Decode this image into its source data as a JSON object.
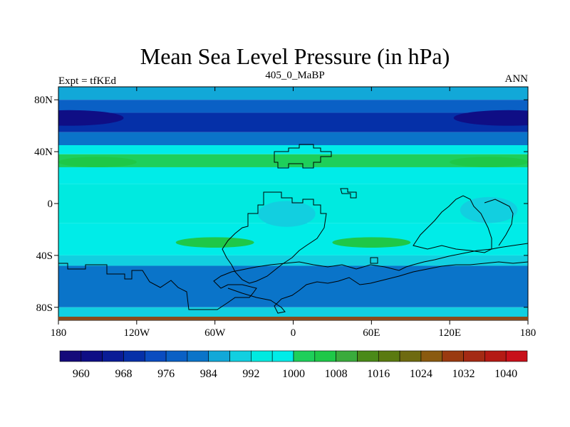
{
  "chart_data": {
    "type": "heatmap",
    "title": "Mean Sea Level Pressure (in hPa)",
    "left_string": "Expt = tfKEd",
    "center_string": "405_0_MaBP",
    "right_string": "ANN",
    "xlim": [
      -180,
      180
    ],
    "ylim": [
      -90,
      90
    ],
    "x_ticks": [
      -180,
      -120,
      -60,
      0,
      60,
      120,
      180
    ],
    "x_tick_labels": [
      "180",
      "120W",
      "60W",
      "0",
      "60E",
      "120E",
      "180"
    ],
    "y_ticks": [
      -80,
      -40,
      0,
      40,
      80
    ],
    "y_tick_labels": [
      "80S",
      "40S",
      "0",
      "40N",
      "80N"
    ],
    "colorbar": {
      "levels": [
        956,
        960,
        964,
        968,
        972,
        976,
        980,
        984,
        988,
        992,
        996,
        1000,
        1004,
        1008,
        1012,
        1016,
        1020,
        1024,
        1028,
        1032,
        1036,
        1040,
        1044
      ],
      "label_values": [
        "960",
        "968",
        "976",
        "984",
        "992",
        "1000",
        "1008",
        "1016",
        "1024",
        "1032",
        "1040"
      ],
      "colors": [
        "#150a7a",
        "#0f0e85",
        "#0a1c96",
        "#0530a8",
        "#0a4cc0",
        "#0a60c5",
        "#0a74c9",
        "#12a8d8",
        "#12cfe0",
        "#00eae0",
        "#00ece8",
        "#1ecf5a",
        "#1ec848",
        "#3aab3c",
        "#4a8a18",
        "#5a7a10",
        "#6e6a10",
        "#8a5a10",
        "#9a3a10",
        "#a42a14",
        "#b41a14",
        "#c8101a"
      ]
    },
    "latitude_bands": [
      {
        "lat_range": [
          80,
          90
        ],
        "value_hPa": 986
      },
      {
        "lat_range": [
          70,
          80
        ],
        "value_hPa": 978
      },
      {
        "lat_range": [
          55,
          70
        ],
        "value_hPa": 970
      },
      {
        "lat_range": [
          45,
          55
        ],
        "value_hPa": 980
      },
      {
        "lat_range": [
          38,
          45
        ],
        "value_hPa": 998
      },
      {
        "lat_range": [
          28,
          38
        ],
        "value_hPa": 1002
      },
      {
        "lat_range": [
          15,
          28
        ],
        "value_hPa": 998
      },
      {
        "lat_range": [
          -15,
          15
        ],
        "value_hPa": 994
      },
      {
        "lat_range": [
          -40,
          -15
        ],
        "value_hPa": 998
      },
      {
        "lat_range": [
          -48,
          -40
        ],
        "value_hPa": 990
      },
      {
        "lat_range": [
          -80,
          -48
        ],
        "value_hPa": 982
      },
      {
        "lat_range": [
          -90,
          -80
        ],
        "value_hPa": 988
      }
    ],
    "features": [
      {
        "kind": "low",
        "center": [
          -172,
          66
        ],
        "value_hPa": 962
      },
      {
        "kind": "low",
        "center": [
          165,
          66
        ],
        "value_hPa": 962
      },
      {
        "kind": "high",
        "center": [
          -150,
          32
        ],
        "value_hPa": 1006
      },
      {
        "kind": "high",
        "center": [
          150,
          32
        ],
        "value_hPa": 1006
      },
      {
        "kind": "high",
        "center": [
          -60,
          -30
        ],
        "value_hPa": 1006
      },
      {
        "kind": "high",
        "center": [
          60,
          -30
        ],
        "value_hPa": 1006
      },
      {
        "kind": "low",
        "center": [
          -5,
          -8
        ],
        "value_hPa": 990
      },
      {
        "kind": "low",
        "center": [
          150,
          -5
        ],
        "value_hPa": 990
      }
    ]
  }
}
